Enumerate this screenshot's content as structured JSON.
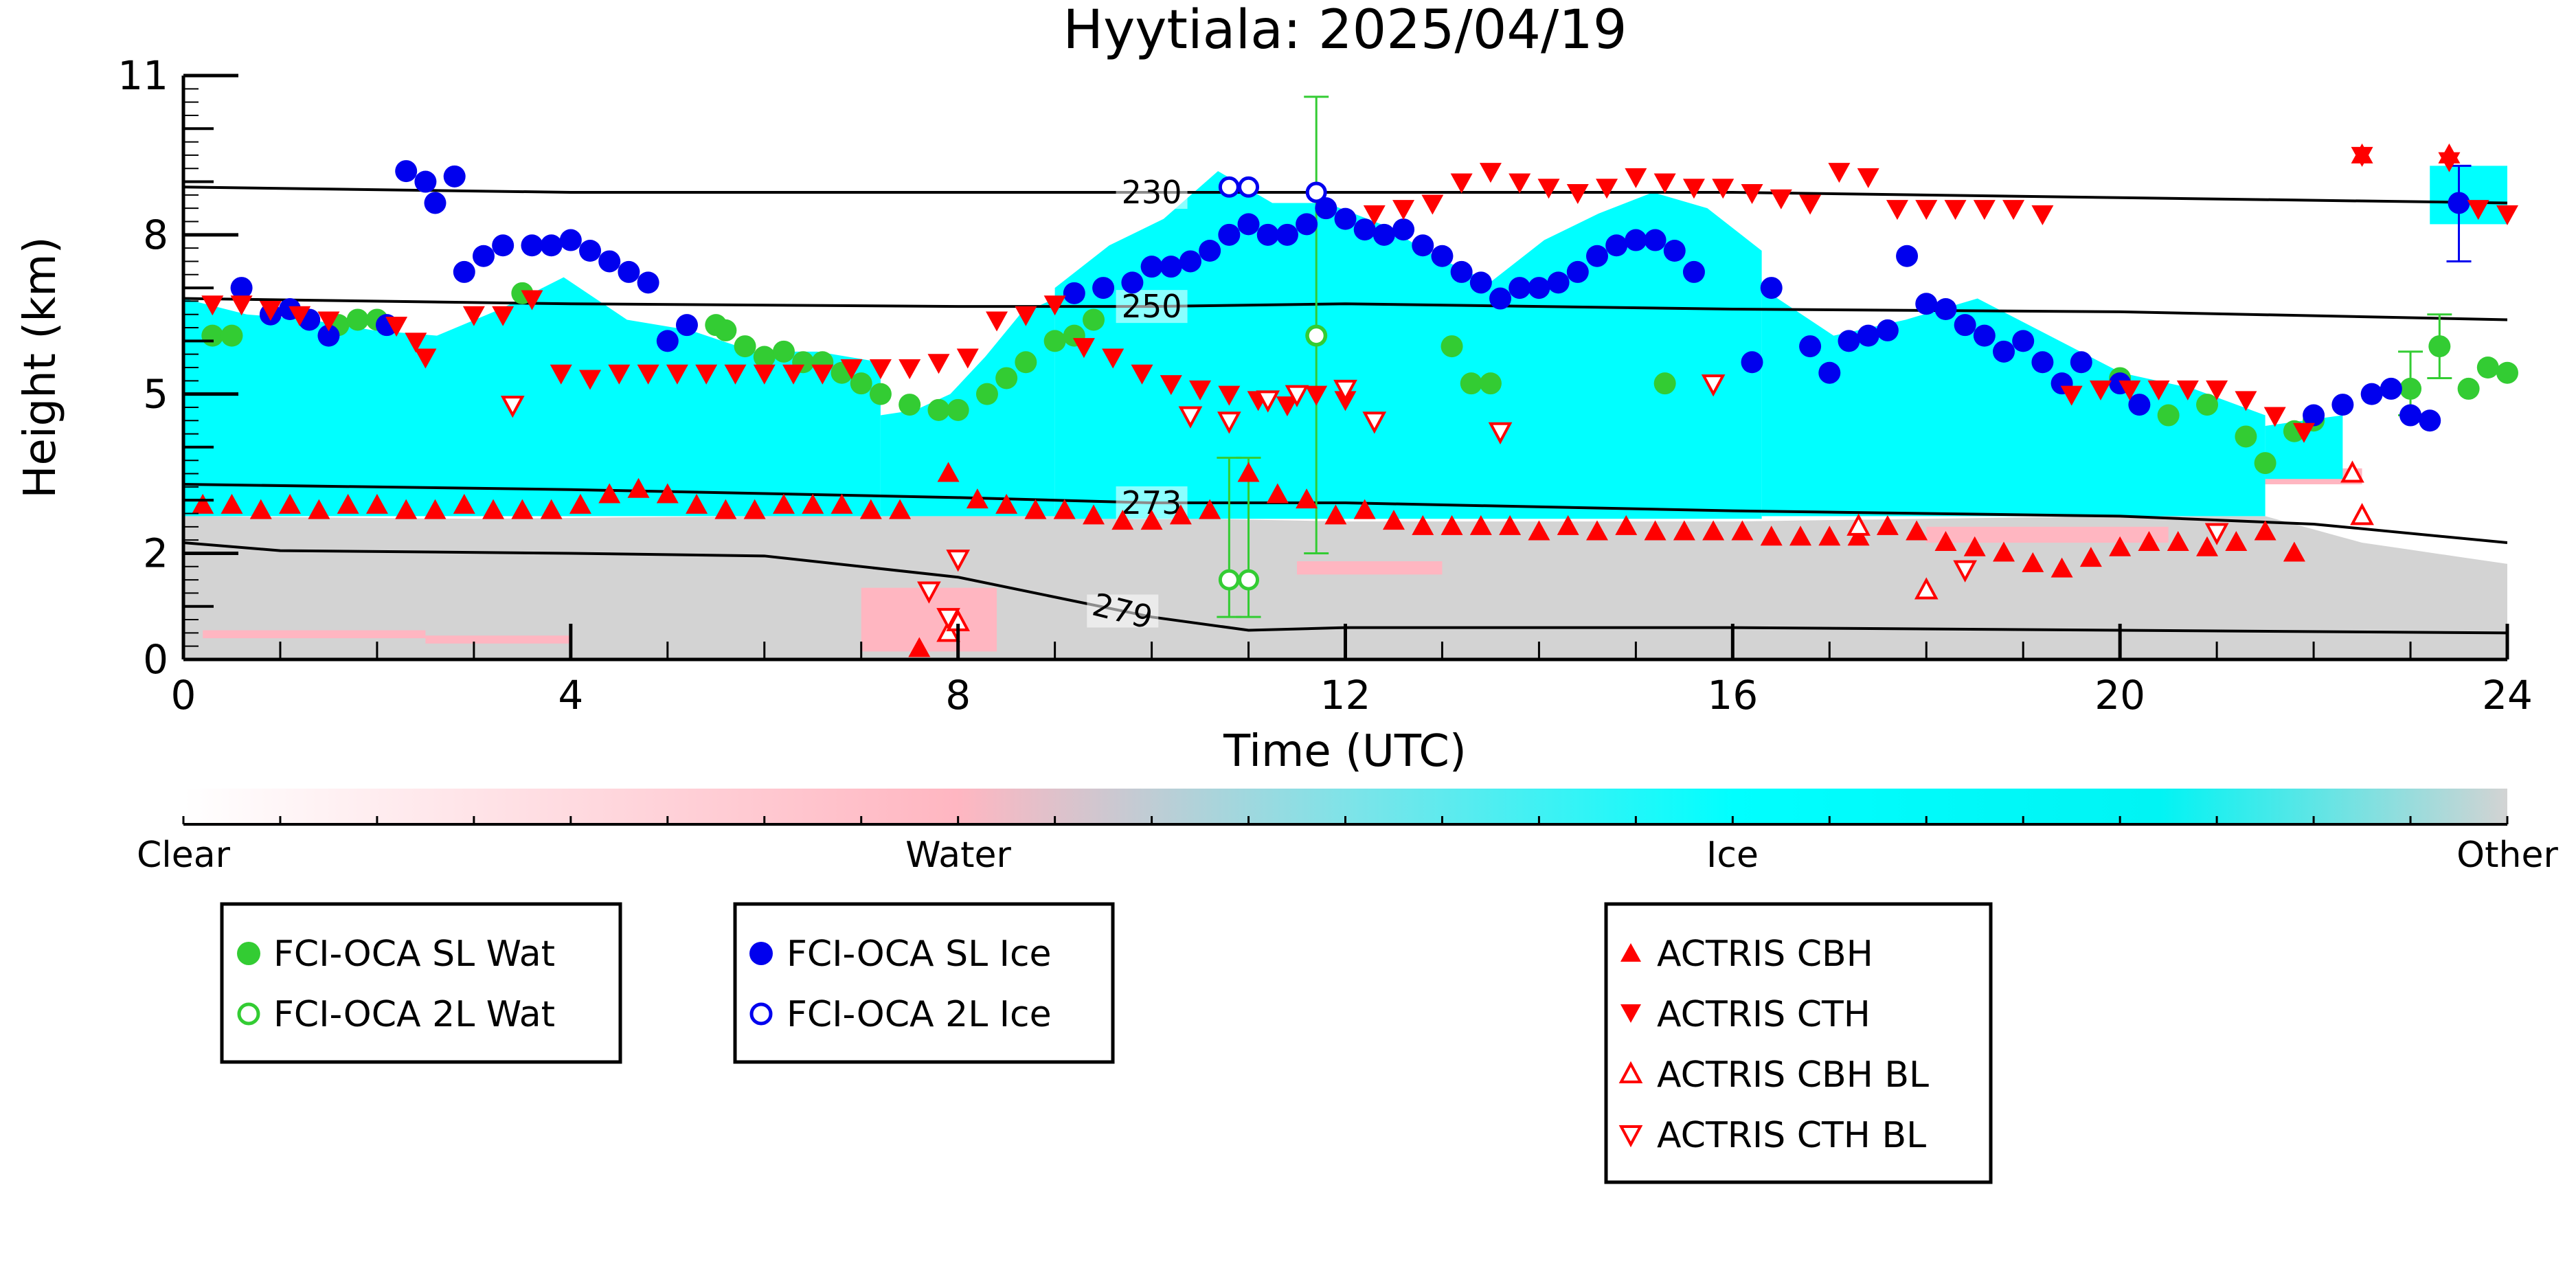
{
  "title": "Hyytiala: 2025/04/19",
  "chart_data": {
    "type": "scatter",
    "title": "Hyytiala: 2025/04/19",
    "xlabel": "Time (UTC)",
    "ylabel": "Height (km)",
    "xlim": [
      0,
      24
    ],
    "ylim": [
      0,
      11
    ],
    "x_ticks": [
      "0",
      "4",
      "8",
      "12",
      "16",
      "20",
      "24"
    ],
    "y_ticks": [
      "0",
      "2",
      "5",
      "8",
      "11"
    ],
    "y_tick_values": [
      0,
      2,
      5,
      8,
      11
    ],
    "colorbar": {
      "labels": [
        "Clear",
        "Water",
        "Ice",
        "Other"
      ],
      "colors": {
        "clear": "#ffffff",
        "water": "#ffb6c1",
        "ice": "#00ffff",
        "other": "#d3d3d3"
      }
    },
    "background_classes": {
      "other": {
        "color": "#d3d3d3",
        "top": [
          [
            0,
            2.7
          ],
          [
            3,
            2.65
          ],
          [
            6,
            2.7
          ],
          [
            9,
            2.7
          ],
          [
            12,
            2.6
          ],
          [
            16,
            2.6
          ],
          [
            20,
            2.7
          ],
          [
            21.5,
            2.7
          ],
          [
            22.5,
            2.2
          ],
          [
            24,
            1.8
          ]
        ]
      },
      "ice": {
        "color": "#00ffff",
        "segments": [
          {
            "x": [
              0,
              7.2
            ],
            "bottom": 2.7,
            "top": [
              6.8,
              6.5,
              6.4,
              6.2,
              6.1,
              6.6,
              7.2,
              6.4,
              6.2,
              5.8,
              5.8,
              5.6
            ]
          },
          {
            "x": [
              7.2,
              9.0
            ],
            "bottom": 2.7,
            "top": [
              4.6,
              4.7,
              5.0,
              5.7,
              6.5,
              6.8
            ]
          },
          {
            "x": [
              9.0,
              16.3
            ],
            "bottom": 2.65,
            "top": [
              7.0,
              7.8,
              8.3,
              9.2,
              8.6,
              8.6,
              8.2,
              7.6,
              7.1,
              7.9,
              8.4,
              8.8,
              8.5,
              7.7
            ]
          },
          {
            "x": [
              16.3,
              21.5
            ],
            "bottom": 2.7,
            "top": [
              7.0,
              6.1,
              6.4,
              6.8,
              6.1,
              5.4,
              5.1,
              4.6
            ]
          },
          {
            "x": [
              21.5,
              22.3
            ],
            "bottom": 3.4,
            "top": [
              4.4,
              4.6
            ]
          },
          {
            "x": [
              23.2,
              24
            ],
            "bottom": 8.2,
            "top": [
              9.3,
              9.3
            ]
          }
        ]
      },
      "water_layers": {
        "color": "#ffb6c1",
        "note": "pink liquid layers near surface and around 1.5-3 km"
      }
    },
    "isotherms": [
      {
        "label": "230",
        "x": [
          0,
          4,
          8,
          10,
          12,
          16,
          20,
          24
        ],
        "y": [
          8.9,
          8.8,
          8.8,
          8.8,
          8.8,
          8.8,
          8.7,
          8.6
        ]
      },
      {
        "label": "250",
        "x": [
          0,
          4,
          8,
          10,
          12,
          16,
          20,
          24
        ],
        "y": [
          6.8,
          6.7,
          6.65,
          6.65,
          6.7,
          6.6,
          6.55,
          6.4
        ]
      },
      {
        "label": "273",
        "x": [
          0,
          4,
          8,
          10,
          12,
          16,
          20,
          22,
          24
        ],
        "y": [
          3.3,
          3.2,
          3.05,
          2.95,
          2.95,
          2.8,
          2.7,
          2.55,
          2.2
        ]
      },
      {
        "label": "279",
        "x": [
          0,
          1,
          4,
          6,
          8,
          10,
          11,
          12,
          16,
          20,
          24
        ],
        "y": [
          2.2,
          2.05,
          2.0,
          1.95,
          1.55,
          0.8,
          0.55,
          0.6,
          0.6,
          0.55,
          0.5
        ]
      }
    ],
    "series": [
      {
        "name": "FCI-OCA SL Wat",
        "color": "#33cc33",
        "marker": "filled-circle",
        "x": [
          0.3,
          0.5,
          1.6,
          1.8,
          2.0,
          3.5,
          5.5,
          5.6,
          5.8,
          6.0,
          6.2,
          6.4,
          6.6,
          6.8,
          7.0,
          7.2,
          7.5,
          7.8,
          8.0,
          8.3,
          8.5,
          8.7,
          9.0,
          9.2,
          9.4,
          11.7,
          13.1,
          13.3,
          13.5,
          15.3,
          20.0,
          20.5,
          20.9,
          21.3,
          21.5,
          21.8,
          22.0,
          23.0,
          23.3,
          23.6,
          23.8,
          24.0
        ],
        "y": [
          6.1,
          6.1,
          6.3,
          6.4,
          6.4,
          6.9,
          6.3,
          6.2,
          5.9,
          5.7,
          5.8,
          5.6,
          5.6,
          5.4,
          5.2,
          5.0,
          4.8,
          4.7,
          4.7,
          5.0,
          5.3,
          5.6,
          6.0,
          6.1,
          6.4,
          6.1,
          5.9,
          5.2,
          5.2,
          5.2,
          5.3,
          4.6,
          4.8,
          4.2,
          3.7,
          4.3,
          4.5,
          5.1,
          5.9,
          5.1,
          5.5,
          5.4
        ]
      },
      {
        "name": "FCI-OCA 2L Wat",
        "color": "#33cc33",
        "marker": "open-circle",
        "x": [
          10.8,
          11.0,
          11.7
        ],
        "y": [
          1.5,
          1.5,
          6.1
        ]
      },
      {
        "name": "FCI-OCA SL Ice",
        "color": "#0000ee",
        "marker": "filled-circle",
        "x": [
          0.6,
          0.9,
          1.1,
          1.3,
          1.5,
          2.1,
          2.3,
          2.5,
          2.6,
          2.8,
          2.9,
          3.1,
          3.3,
          3.6,
          3.8,
          4.0,
          4.2,
          4.4,
          4.6,
          4.8,
          5.0,
          5.2,
          9.2,
          9.5,
          9.8,
          10.0,
          10.2,
          10.4,
          10.6,
          10.8,
          11.0,
          11.2,
          11.4,
          11.6,
          11.8,
          12.0,
          12.2,
          12.4,
          12.6,
          12.8,
          13.0,
          13.2,
          13.4,
          13.6,
          13.8,
          14.0,
          14.2,
          14.4,
          14.6,
          14.8,
          15.0,
          15.2,
          15.4,
          15.6,
          16.2,
          16.4,
          16.8,
          17.0,
          17.2,
          17.4,
          17.6,
          17.8,
          18.0,
          18.2,
          18.4,
          18.6,
          18.8,
          19.0,
          19.2,
          19.4,
          19.6,
          20.0,
          20.2,
          22.0,
          22.3,
          22.6,
          22.8,
          23.0,
          23.2,
          23.5
        ],
        "y": [
          7.0,
          6.5,
          6.6,
          6.4,
          6.1,
          6.3,
          9.2,
          9.0,
          8.6,
          9.1,
          7.3,
          7.6,
          7.8,
          7.8,
          7.8,
          7.9,
          7.7,
          7.5,
          7.3,
          7.1,
          6.0,
          6.3,
          6.9,
          7.0,
          7.1,
          7.4,
          7.4,
          7.5,
          7.7,
          8.0,
          8.2,
          8.0,
          8.0,
          8.2,
          8.5,
          8.3,
          8.1,
          8.0,
          8.1,
          7.8,
          7.6,
          7.3,
          7.1,
          6.8,
          7.0,
          7.0,
          7.1,
          7.3,
          7.6,
          7.8,
          7.9,
          7.9,
          7.7,
          7.3,
          5.6,
          7.0,
          5.9,
          5.4,
          6.0,
          6.1,
          6.2,
          7.6,
          6.7,
          6.6,
          6.3,
          6.1,
          5.8,
          6.0,
          5.6,
          5.2,
          5.6,
          5.2,
          4.8,
          4.6,
          4.8,
          5.0,
          5.1,
          4.6,
          4.5,
          8.6
        ]
      },
      {
        "name": "FCI-OCA 2L Ice",
        "color": "#0000ee",
        "marker": "open-circle",
        "x": [
          10.8,
          11.0,
          11.7
        ],
        "y": [
          8.9,
          8.9,
          8.8
        ]
      },
      {
        "name": "ACTRIS CBH",
        "color": "#ff0000",
        "marker": "filled-triangle-up",
        "x": [
          0.2,
          0.5,
          0.8,
          1.1,
          1.4,
          1.7,
          2.0,
          2.3,
          2.6,
          2.9,
          3.2,
          3.5,
          3.8,
          4.1,
          4.4,
          4.7,
          5.0,
          5.3,
          5.6,
          5.9,
          6.2,
          6.5,
          6.8,
          7.1,
          7.4,
          7.6,
          7.9,
          8.2,
          8.5,
          8.8,
          9.1,
          9.4,
          9.7,
          10.0,
          10.3,
          10.6,
          11.0,
          11.3,
          11.6,
          11.9,
          12.2,
          12.5,
          12.8,
          13.1,
          13.4,
          13.7,
          14.0,
          14.3,
          14.6,
          14.9,
          15.2,
          15.5,
          15.8,
          16.1,
          16.4,
          16.7,
          17.0,
          17.3,
          17.6,
          17.9,
          18.2,
          18.5,
          18.8,
          19.1,
          19.4,
          19.7,
          20.0,
          20.3,
          20.6,
          20.9,
          21.2,
          21.5,
          21.8,
          22.5,
          23.4
        ],
        "y": [
          2.9,
          2.9,
          2.8,
          2.9,
          2.8,
          2.9,
          2.9,
          2.8,
          2.8,
          2.9,
          2.8,
          2.8,
          2.8,
          2.9,
          3.1,
          3.2,
          3.1,
          2.9,
          2.8,
          2.8,
          2.9,
          2.9,
          2.9,
          2.8,
          2.8,
          0.2,
          3.5,
          3.0,
          2.9,
          2.8,
          2.8,
          2.7,
          2.6,
          2.6,
          2.7,
          2.8,
          3.5,
          3.1,
          3.0,
          2.7,
          2.8,
          2.6,
          2.5,
          2.5,
          2.5,
          2.5,
          2.4,
          2.5,
          2.4,
          2.5,
          2.4,
          2.4,
          2.4,
          2.4,
          2.3,
          2.3,
          2.3,
          2.3,
          2.5,
          2.4,
          2.2,
          2.1,
          2.0,
          1.8,
          1.7,
          1.9,
          2.1,
          2.2,
          2.2,
          2.1,
          2.2,
          2.4,
          2.0,
          9.5,
          9.5
        ]
      },
      {
        "name": "ACTRIS CTH",
        "color": "#ff0000",
        "marker": "filled-triangle-down",
        "x": [
          0.3,
          0.6,
          0.9,
          1.2,
          1.5,
          2.2,
          2.4,
          2.5,
          3.0,
          3.3,
          3.6,
          3.9,
          4.2,
          4.5,
          4.8,
          5.1,
          5.4,
          5.7,
          6.0,
          6.3,
          6.6,
          6.9,
          7.2,
          7.5,
          7.8,
          8.1,
          8.4,
          8.7,
          9.0,
          9.3,
          9.6,
          9.9,
          10.2,
          10.5,
          10.8,
          11.1,
          11.4,
          11.7,
          12.0,
          12.3,
          12.6,
          12.9,
          13.2,
          13.5,
          13.8,
          14.1,
          14.4,
          14.7,
          15.0,
          15.3,
          15.6,
          15.9,
          16.2,
          16.5,
          16.8,
          17.1,
          17.4,
          17.7,
          18.0,
          18.3,
          18.6,
          18.9,
          19.2,
          19.5,
          19.8,
          20.1,
          20.4,
          20.7,
          21.0,
          21.3,
          21.6,
          21.9,
          22.5,
          23.4,
          23.7,
          24.0
        ],
        "y": [
          6.7,
          6.7,
          6.6,
          6.5,
          6.4,
          6.3,
          6.0,
          5.7,
          6.5,
          6.5,
          6.8,
          5.4,
          5.3,
          5.4,
          5.4,
          5.4,
          5.4,
          5.4,
          5.4,
          5.4,
          5.4,
          5.5,
          5.5,
          5.5,
          5.6,
          5.7,
          6.4,
          6.5,
          6.7,
          5.9,
          5.7,
          5.4,
          5.2,
          5.1,
          5.0,
          4.9,
          4.8,
          5.0,
          4.9,
          8.4,
          8.5,
          8.6,
          9.0,
          9.2,
          9.0,
          8.9,
          8.8,
          8.9,
          9.1,
          9.0,
          8.9,
          8.9,
          8.8,
          8.7,
          8.6,
          9.2,
          9.1,
          8.5,
          8.5,
          8.5,
          8.5,
          8.5,
          8.4,
          5.0,
          5.1,
          5.1,
          5.1,
          5.1,
          5.1,
          4.9,
          4.6,
          4.3,
          9.5,
          9.4,
          8.5,
          8.4
        ]
      },
      {
        "name": "ACTRIS CBH BL",
        "color": "#ff0000",
        "marker": "open-triangle-up",
        "x": [
          7.9,
          8.0,
          17.3,
          18.0,
          22.4,
          22.5
        ],
        "y": [
          0.5,
          0.7,
          2.5,
          1.3,
          3.5,
          2.7
        ]
      },
      {
        "name": "ACTRIS CTH BL",
        "color": "#ff0000",
        "marker": "open-triangle-down",
        "x": [
          3.4,
          7.7,
          7.9,
          8.0,
          10.4,
          10.8,
          11.2,
          11.5,
          12.0,
          12.3,
          13.6,
          15.8,
          18.4,
          21.0
        ],
        "y": [
          4.8,
          1.3,
          0.8,
          1.9,
          4.6,
          4.5,
          4.9,
          5.0,
          5.1,
          4.5,
          4.3,
          5.2,
          1.7,
          2.4
        ]
      }
    ],
    "error_bars": [
      {
        "x": 10.8,
        "low": 0.8,
        "high": 3.8,
        "color": "#33cc33"
      },
      {
        "x": 11.0,
        "low": 0.8,
        "high": 3.8,
        "color": "#33cc33"
      },
      {
        "x": 11.7,
        "low": 2.0,
        "high": 10.6,
        "color": "#33cc33"
      },
      {
        "x": 23.5,
        "low": 7.5,
        "high": 9.3,
        "color": "#0000ee"
      },
      {
        "x": 23.0,
        "low": 4.6,
        "high": 5.8,
        "color": "#33cc33"
      },
      {
        "x": 23.3,
        "low": 5.3,
        "high": 6.5,
        "color": "#33cc33"
      }
    ],
    "legend_groups": [
      [
        "FCI-OCA SL Wat",
        "FCI-OCA 2L Wat"
      ],
      [
        "FCI-OCA SL Ice",
        "FCI-OCA 2L Ice"
      ],
      [
        "ACTRIS CBH",
        "ACTRIS CTH",
        "ACTRIS CBH BL",
        "ACTRIS CTH BL"
      ]
    ],
    "legend_placement": "below-plot"
  }
}
